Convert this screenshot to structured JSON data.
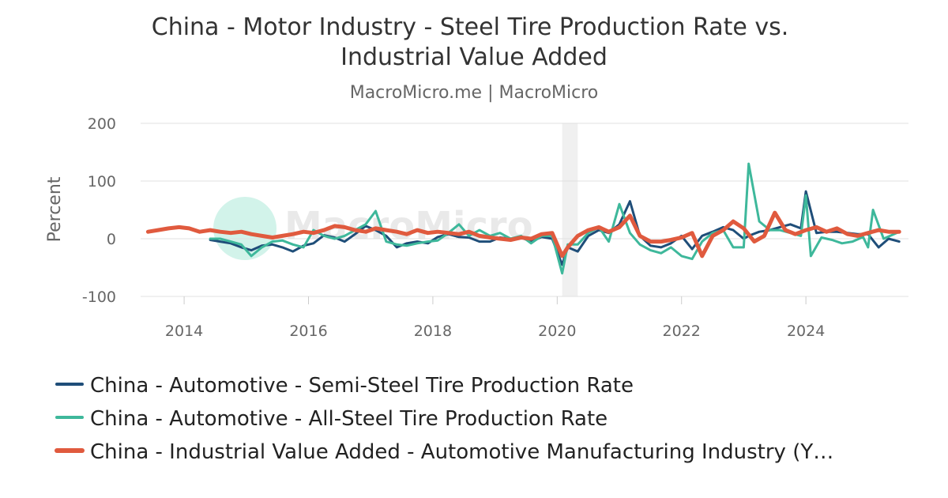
{
  "chart_data": {
    "type": "line",
    "title_lines": [
      "China - Motor Industry - Steel Tire Production Rate vs.",
      "Industrial Value Added"
    ],
    "subtitle": "MacroMicro.me | MacroMicro",
    "ylabel": "Percent",
    "ylim": [
      -100,
      200
    ],
    "yticks": [
      -100,
      0,
      100,
      200
    ],
    "ytick_labels": [
      "-100",
      "0",
      "100",
      "200"
    ],
    "xlim": [
      2013.3,
      2025.65
    ],
    "xticks": [
      2014,
      2016,
      2018,
      2020,
      2022,
      2024
    ],
    "xtick_labels": [
      "2014",
      "2016",
      "2018",
      "2020",
      "2022",
      "2024"
    ],
    "shaded_ranges": [
      [
        2020.08,
        2020.33
      ]
    ],
    "grid": true,
    "legend_position": "bottom",
    "watermark": "MacroMicro",
    "series": [
      {
        "name": "China - Automotive - Semi-Steel Tire Production Rate",
        "color": "#1f4e79",
        "x": [
          2014.42,
          2014.58,
          2014.75,
          2014.92,
          2015.08,
          2015.25,
          2015.42,
          2015.58,
          2015.75,
          2015.92,
          2016.08,
          2016.25,
          2016.42,
          2016.58,
          2016.75,
          2016.92,
          2017.08,
          2017.25,
          2017.42,
          2017.58,
          2017.75,
          2017.92,
          2018.08,
          2018.25,
          2018.42,
          2018.58,
          2018.75,
          2018.92,
          2019.08,
          2019.25,
          2019.42,
          2019.58,
          2019.75,
          2019.92,
          2020.08,
          2020.17,
          2020.33,
          2020.5,
          2020.67,
          2020.83,
          2021.0,
          2021.17,
          2021.33,
          2021.5,
          2021.67,
          2021.83,
          2022.0,
          2022.17,
          2022.33,
          2022.5,
          2022.67,
          2022.83,
          2023.0,
          2023.08,
          2023.25,
          2023.42,
          2023.58,
          2023.75,
          2023.92,
          2024.0,
          2024.17,
          2024.33,
          2024.5,
          2024.67,
          2024.83,
          2025.0,
          2025.17,
          2025.33,
          2025.5
        ],
        "values": [
          -2,
          -5,
          -8,
          -15,
          -20,
          -12,
          -10,
          -15,
          -22,
          -12,
          -8,
          6,
          2,
          -5,
          8,
          22,
          15,
          5,
          -15,
          -8,
          -5,
          -8,
          3,
          8,
          3,
          2,
          -5,
          -5,
          2,
          0,
          2,
          -5,
          3,
          0,
          -45,
          -15,
          -22,
          5,
          15,
          10,
          25,
          65,
          5,
          -12,
          -15,
          -8,
          5,
          -18,
          5,
          12,
          20,
          15,
          0,
          5,
          12,
          15,
          20,
          25,
          18,
          82,
          10,
          12,
          12,
          10,
          8,
          8,
          -15,
          0,
          -5
        ]
      },
      {
        "name": "China - Automotive - All-Steel Tire Production Rate",
        "color": "#3eb89b",
        "x": [
          2014.42,
          2014.58,
          2014.75,
          2014.92,
          2015.08,
          2015.25,
          2015.42,
          2015.58,
          2015.75,
          2015.92,
          2016.08,
          2016.25,
          2016.42,
          2016.58,
          2016.75,
          2016.92,
          2017.08,
          2017.25,
          2017.42,
          2017.58,
          2017.75,
          2017.92,
          2018.08,
          2018.25,
          2018.42,
          2018.58,
          2018.75,
          2018.92,
          2019.08,
          2019.25,
          2019.42,
          2019.58,
          2019.75,
          2019.92,
          2020.08,
          2020.17,
          2020.33,
          2020.5,
          2020.67,
          2020.83,
          2021.0,
          2021.17,
          2021.33,
          2021.5,
          2021.67,
          2021.83,
          2022.0,
          2022.17,
          2022.33,
          2022.5,
          2022.67,
          2022.83,
          2023.0,
          2023.08,
          2023.25,
          2023.42,
          2023.58,
          2023.75,
          2023.92,
          2024.0,
          2024.08,
          2024.25,
          2024.42,
          2024.58,
          2024.75,
          2024.92,
          2025.0,
          2025.08,
          2025.25,
          2025.5
        ],
        "values": [
          0,
          0,
          -5,
          -10,
          -30,
          -15,
          -5,
          -3,
          -10,
          -15,
          15,
          5,
          0,
          5,
          15,
          25,
          48,
          -5,
          -10,
          -12,
          -8,
          -5,
          -3,
          10,
          25,
          5,
          15,
          5,
          10,
          0,
          5,
          -8,
          5,
          5,
          -60,
          -10,
          -10,
          10,
          20,
          -5,
          60,
          10,
          -10,
          -20,
          -25,
          -15,
          -30,
          -35,
          -5,
          10,
          15,
          -15,
          -15,
          130,
          30,
          15,
          15,
          10,
          5,
          75,
          -30,
          2,
          -2,
          -8,
          -5,
          3,
          -15,
          50,
          0,
          12
        ]
      },
      {
        "name": "China - Industrial Value Added - Automotive Manufacturing Industry (YoY)",
        "legend_label": "China - Industrial Value Added - Automotive Manufacturing Industry (Y…",
        "color": "#e05a3e",
        "x": [
          2013.42,
          2013.58,
          2013.75,
          2013.92,
          2014.08,
          2014.25,
          2014.42,
          2014.58,
          2014.75,
          2014.92,
          2015.08,
          2015.25,
          2015.42,
          2015.58,
          2015.75,
          2015.92,
          2016.08,
          2016.25,
          2016.42,
          2016.58,
          2016.75,
          2016.92,
          2017.08,
          2017.25,
          2017.42,
          2017.58,
          2017.75,
          2017.92,
          2018.08,
          2018.25,
          2018.42,
          2018.58,
          2018.75,
          2018.92,
          2019.08,
          2019.25,
          2019.42,
          2019.58,
          2019.75,
          2019.92,
          2020.08,
          2020.17,
          2020.33,
          2020.5,
          2020.67,
          2020.83,
          2021.0,
          2021.17,
          2021.33,
          2021.5,
          2021.67,
          2021.83,
          2022.0,
          2022.17,
          2022.33,
          2022.5,
          2022.67,
          2022.83,
          2023.0,
          2023.17,
          2023.33,
          2023.5,
          2023.67,
          2023.83,
          2024.0,
          2024.17,
          2024.33,
          2024.5,
          2024.67,
          2024.83,
          2025.0,
          2025.17,
          2025.33,
          2025.5
        ],
        "values": [
          12,
          15,
          18,
          20,
          18,
          12,
          15,
          12,
          10,
          12,
          8,
          5,
          2,
          5,
          8,
          12,
          10,
          15,
          22,
          20,
          15,
          12,
          18,
          15,
          12,
          8,
          15,
          10,
          12,
          10,
          8,
          12,
          5,
          2,
          0,
          -2,
          2,
          0,
          8,
          10,
          -30,
          -15,
          5,
          15,
          20,
          12,
          20,
          40,
          5,
          -5,
          -5,
          -2,
          2,
          10,
          -30,
          5,
          15,
          30,
          18,
          -5,
          5,
          45,
          15,
          8,
          15,
          20,
          12,
          18,
          8,
          5,
          10,
          15,
          12,
          12
        ]
      }
    ]
  }
}
